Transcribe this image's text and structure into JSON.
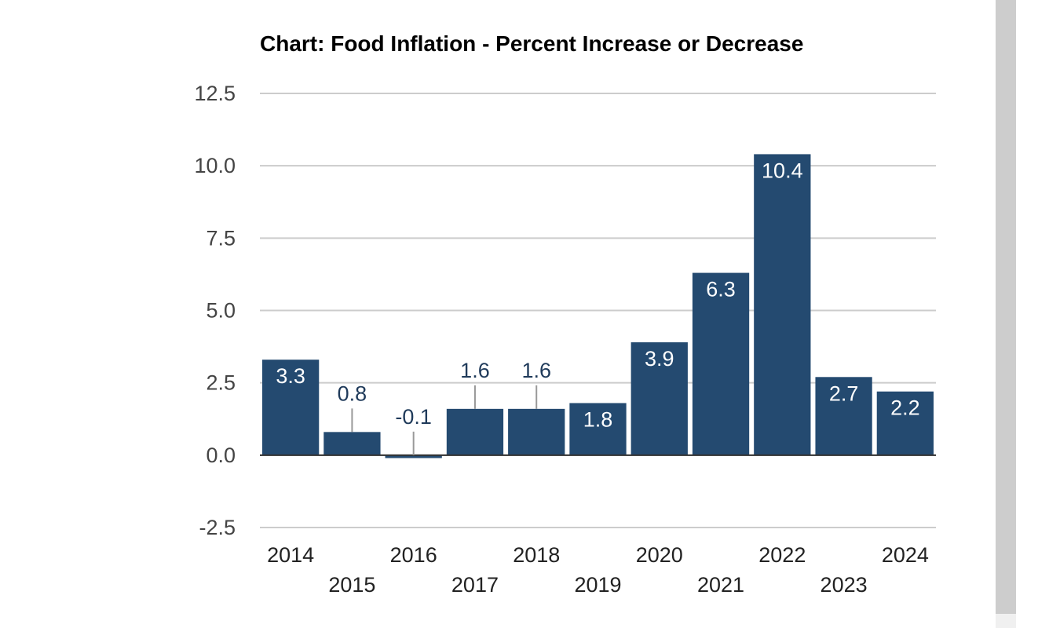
{
  "chart_data": {
    "type": "bar",
    "title": "Chart: Food Inflation - Percent Increase or Decrease",
    "categories": [
      "2014",
      "2015",
      "2016",
      "2017",
      "2018",
      "2019",
      "2020",
      "2021",
      "2022",
      "2023",
      "2024"
    ],
    "values": [
      3.3,
      0.8,
      -0.1,
      1.6,
      1.6,
      1.8,
      3.9,
      6.3,
      10.4,
      2.7,
      2.2
    ],
    "value_labels": [
      "3.3",
      "0.8",
      "-0.1",
      "1.6",
      "1.6",
      "1.8",
      "3.9",
      "6.3",
      "10.4",
      "2.7",
      "2.2"
    ],
    "ylim": [
      -2.5,
      12.5
    ],
    "yticks": [
      "-2.5",
      "0.0",
      "2.5",
      "5.0",
      "7.5",
      "10.0",
      "12.5"
    ],
    "ytick_values": [
      -2.5,
      0,
      2.5,
      5,
      7.5,
      10,
      12.5
    ],
    "grid": true,
    "bar_color": "#244a70",
    "label_color_inside": "#ffffff",
    "label_color_outside": "#1f3a5a"
  }
}
